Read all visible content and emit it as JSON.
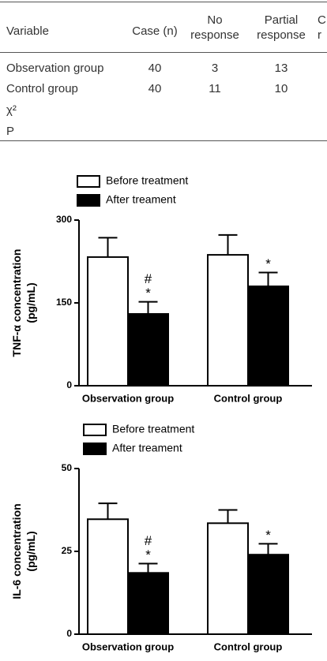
{
  "table": {
    "headers": [
      "Variable",
      "Case (n)",
      "No response",
      "Partial response",
      "C r"
    ],
    "rows": [
      [
        "Observation group",
        "40",
        "3",
        "13"
      ],
      [
        "Control group",
        "40",
        "11",
        "10"
      ],
      [
        "χ²"
      ],
      [
        "P"
      ]
    ]
  },
  "chart_data": [
    {
      "type": "bar",
      "ylabel": [
        "TNF-α concentration",
        "(pg/mL)"
      ],
      "categories": [
        "Observation group",
        "Control group"
      ],
      "series": [
        {
          "name": "Before treatment",
          "color": "#ffffff",
          "values": [
            233,
            237
          ],
          "errors": [
            35,
            36
          ]
        },
        {
          "name": "After treament",
          "color": "#000000",
          "values": [
            130,
            180
          ],
          "errors": [
            22,
            25
          ],
          "annotations": [
            [
              "#",
              "*"
            ],
            [
              "*"
            ]
          ]
        }
      ],
      "ylim": [
        0,
        300
      ],
      "yticks": [
        0,
        150,
        300
      ]
    },
    {
      "type": "bar",
      "ylabel": [
        "IL-6 concentration",
        "(pg/mL)"
      ],
      "categories": [
        "Observation group",
        "Control group"
      ],
      "series": [
        {
          "name": "Before treatment",
          "color": "#ffffff",
          "values": [
            34.7,
            33.5
          ],
          "errors": [
            4.8,
            4
          ]
        },
        {
          "name": "After treament",
          "color": "#000000",
          "values": [
            18.5,
            24
          ],
          "errors": [
            2.8,
            3.3
          ],
          "annotations": [
            [
              "#",
              "*"
            ],
            [
              "*"
            ]
          ]
        }
      ],
      "ylim": [
        0,
        50
      ],
      "yticks": [
        0,
        25,
        50
      ]
    }
  ]
}
